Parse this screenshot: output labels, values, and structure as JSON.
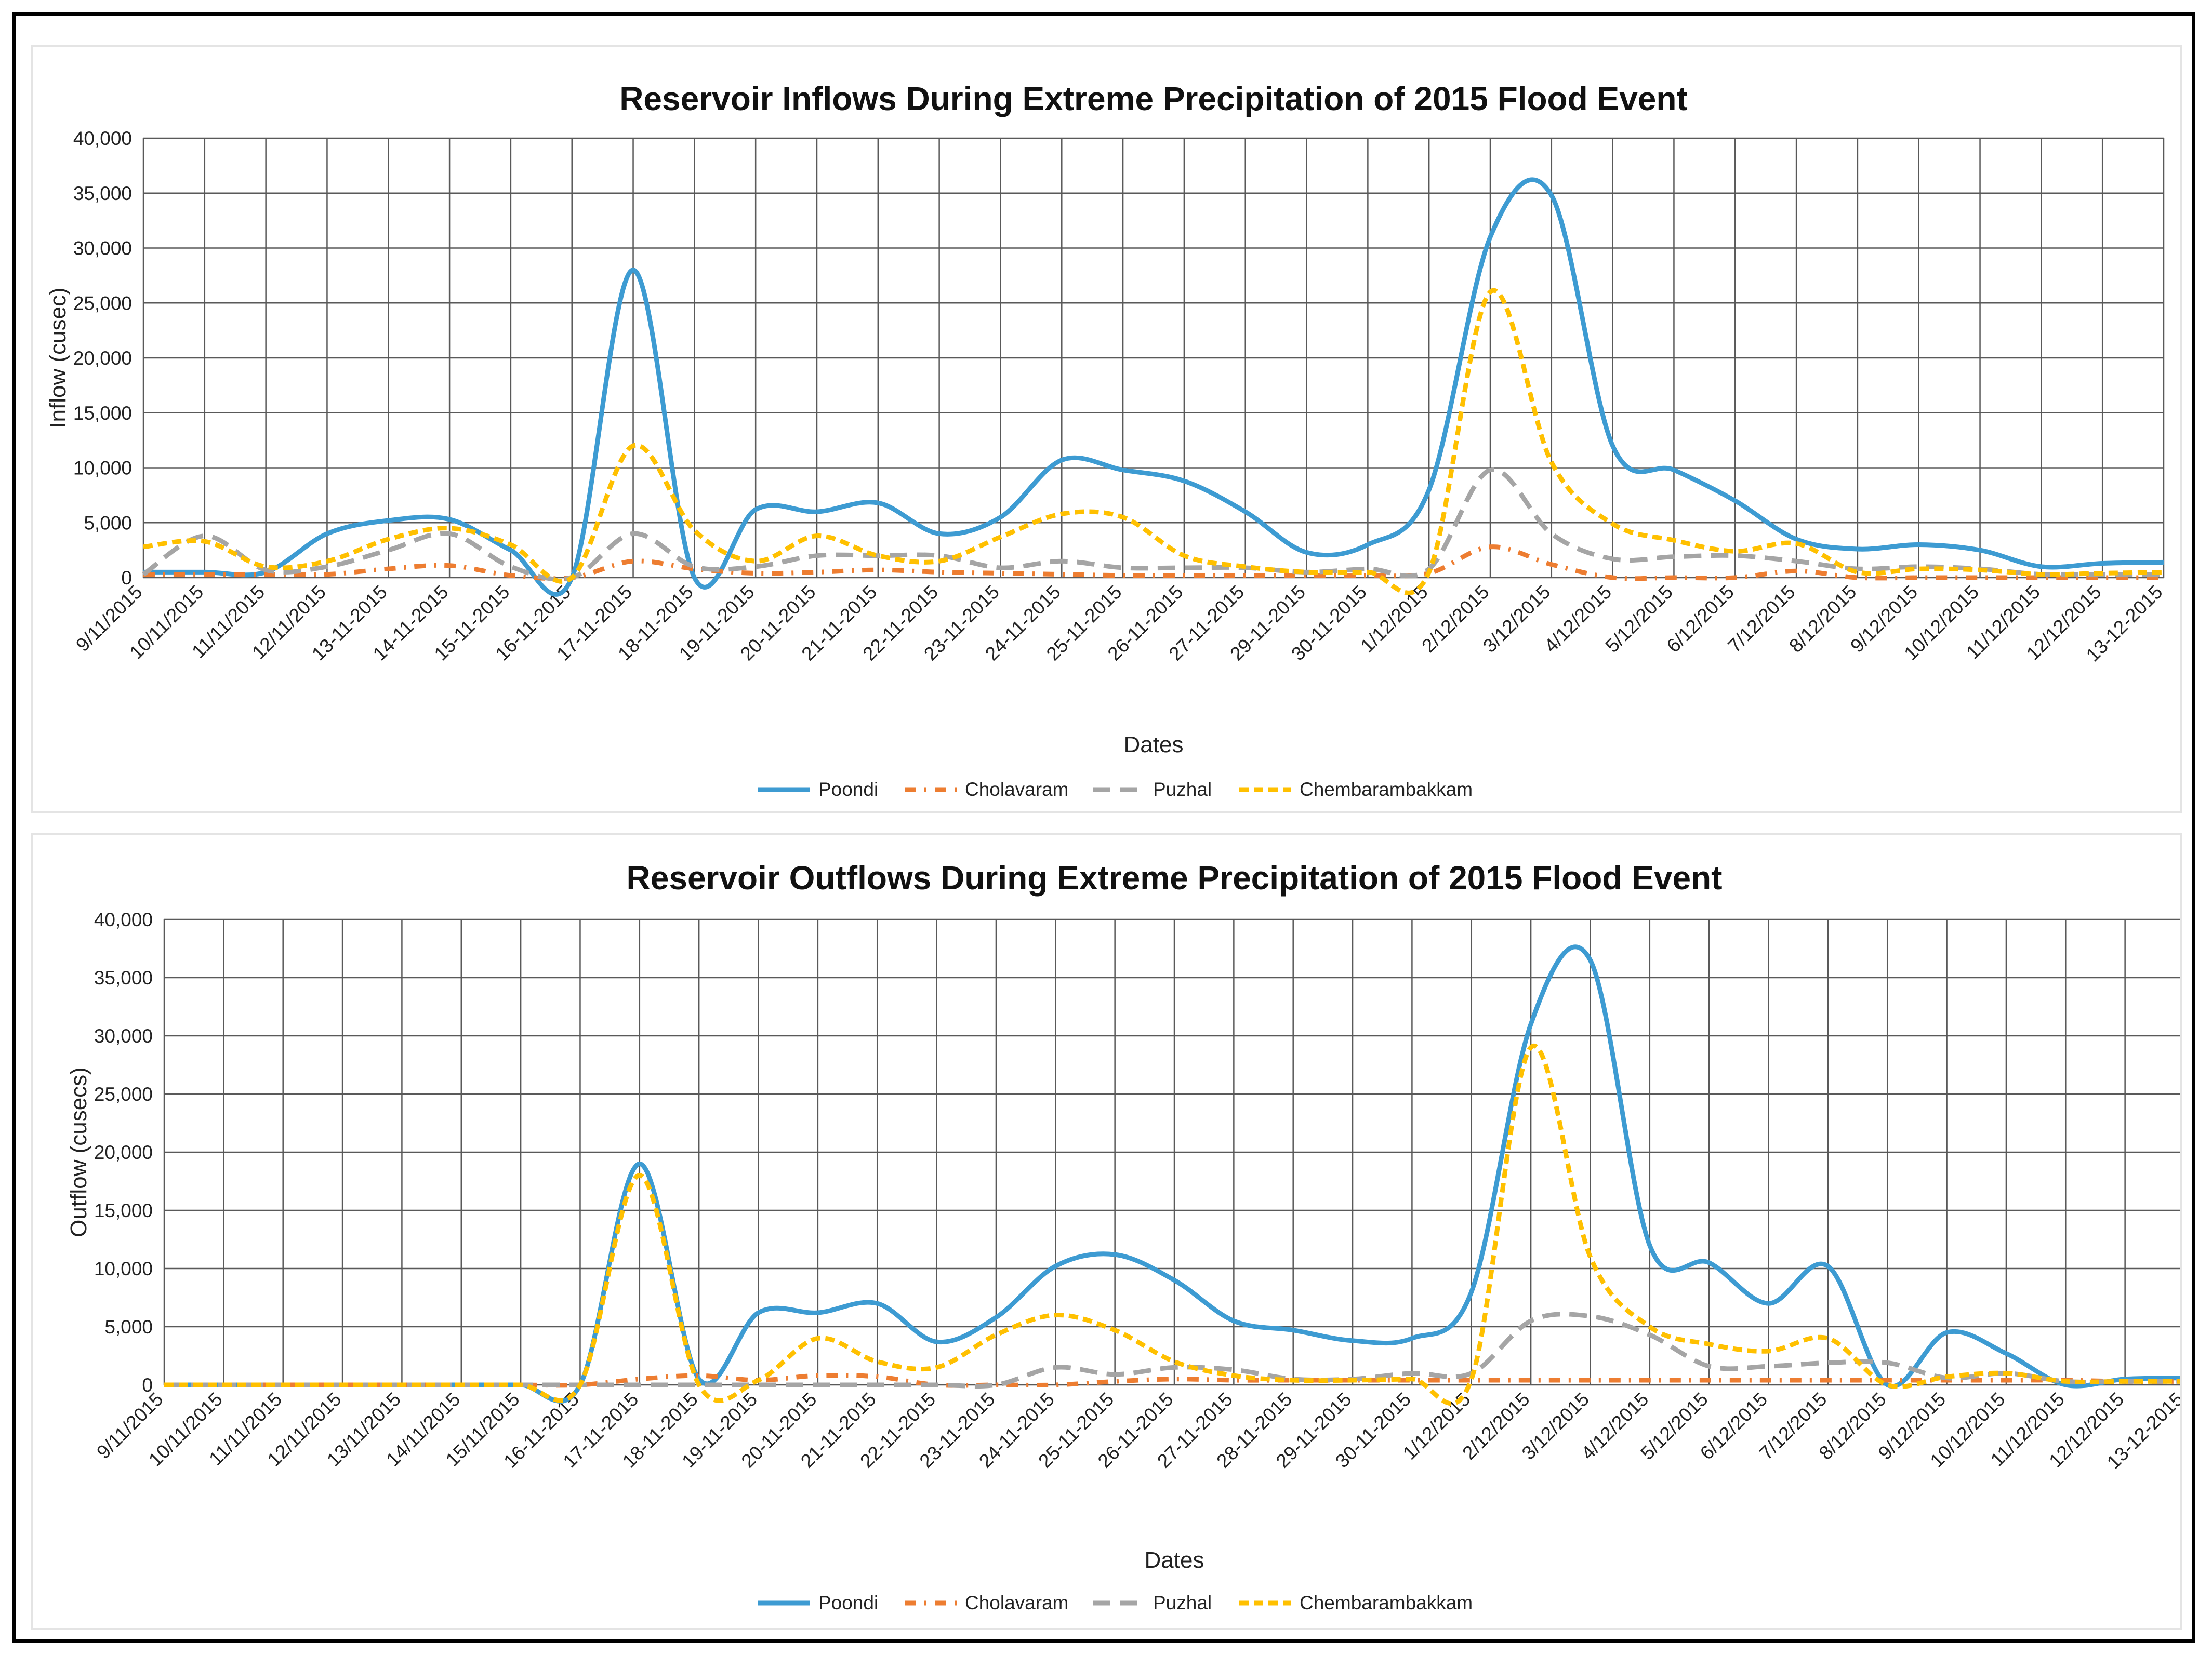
{
  "colors": {
    "Poondi": "#3d9bd2",
    "Cholavaram": "#ed7d31",
    "Puzhal": "#a5a5a5",
    "Chembarambakkam": "#ffc000",
    "grid": "#595959"
  },
  "chart_data": [
    {
      "type": "line",
      "title": "Reservoir Inflows During Extreme Precipitation of 2015 Flood Event",
      "xlabel": "Dates",
      "ylabel": "Inflow (cusec)",
      "ylim": [
        0,
        40000
      ],
      "yticks": [
        "0",
        "5,000",
        "10,000",
        "15,000",
        "20,000",
        "25,000",
        "30,000",
        "35,000",
        "40,000"
      ],
      "categories": [
        "9/11/2015",
        "10/11/2015",
        "11/11/2015",
        "12/11/2015",
        "13-11-2015",
        "14-11-2015",
        "15-11-2015",
        "16-11-2015",
        "17-11-2015",
        "18-11-2015",
        "19-11-2015",
        "20-11-2015",
        "21-11-2015",
        "22-11-2015",
        "23-11-2015",
        "24-11-2015",
        "25-11-2015",
        "26-11-2015",
        "27-11-2015",
        "29-11-2015",
        "30-11-2015",
        "1/12/2015",
        "2/12/2015",
        "3/12/2015",
        "4/12/2015",
        "5/12/2015",
        "6/12/2015",
        "7/12/2015",
        "8/12/2015",
        "9/12/2015",
        "10/12/2015",
        "11/12/2015",
        "12/12/2015",
        "13-12-2015"
      ],
      "legend": "bottom",
      "grid": true,
      "series": [
        {
          "name": "Poondi",
          "values": [
            500,
            500,
            500,
            4000,
            5200,
            5300,
            2500,
            0,
            28000,
            0,
            6200,
            6000,
            6800,
            4000,
            5500,
            10700,
            9800,
            8800,
            6000,
            2300,
            3000,
            8000,
            31000,
            34800,
            12000,
            9800,
            7000,
            3500,
            2600,
            3000,
            2500,
            1000,
            1300,
            1400
          ]
        },
        {
          "name": "Cholavaram",
          "values": [
            300,
            300,
            300,
            300,
            800,
            1100,
            200,
            0,
            1500,
            800,
            400,
            500,
            700,
            500,
            400,
            300,
            200,
            200,
            200,
            200,
            200,
            400,
            2800,
            1200,
            0,
            0,
            0,
            600,
            0,
            0,
            0,
            0,
            0,
            0
          ]
        },
        {
          "name": "Puzhal",
          "values": [
            300,
            3800,
            700,
            1000,
            2500,
            4000,
            1000,
            0,
            4000,
            1000,
            1000,
            2000,
            2000,
            2000,
            900,
            1500,
            900,
            900,
            900,
            500,
            800,
            800,
            9800,
            4000,
            1700,
            1900,
            2000,
            1500,
            800,
            1000,
            800,
            300,
            300,
            300
          ]
        },
        {
          "name": "Chembarambakkam",
          "values": [
            2800,
            3300,
            1000,
            1500,
            3500,
            4500,
            3000,
            0,
            12000,
            4300,
            1500,
            3800,
            2000,
            1500,
            3700,
            5800,
            5500,
            2000,
            1000,
            500,
            500,
            500,
            26000,
            10500,
            4900,
            3400,
            2400,
            3100,
            500,
            800,
            700,
            300,
            400,
            500
          ]
        }
      ]
    },
    {
      "type": "line",
      "title": "Reservoir Outflows During Extreme Precipitation of 2015 Flood Event",
      "xlabel": "Dates",
      "ylabel": "Outflow (cusecs)",
      "ylim": [
        0,
        40000
      ],
      "yticks": [
        "0",
        "5,000",
        "10,000",
        "15,000",
        "20,000",
        "25,000",
        "30,000",
        "35,000",
        "40,000"
      ],
      "categories": [
        "9/11/2015",
        "10/11/2015",
        "11/11/2015",
        "12/11/2015",
        "13/11/2015",
        "14/11/2015",
        "15/11/2015",
        "16-11-2015",
        "17-11-2015",
        "18-11-2015",
        "19-11-2015",
        "20-11-2015",
        "21-11-2015",
        "22-11-2015",
        "23-11-2015",
        "24-11-2015",
        "25-11-2015",
        "26-11-2015",
        "27-11-2015",
        "28-11-2015",
        "29-11-2015",
        "30-11-2015",
        "1/12/2015",
        "2/12/2015",
        "3/12/2015",
        "4/12/2015",
        "5/12/2015",
        "6/12/2015",
        "7/12/2015",
        "8/12/2015",
        "9/12/2015",
        "10/12/2015",
        "11/12/2015",
        "12/12/2015",
        "13-12-2015"
      ],
      "legend": "bottom",
      "grid": true,
      "series": [
        {
          "name": "Poondi",
          "values": [
            0,
            0,
            0,
            0,
            0,
            0,
            0,
            0,
            19000,
            500,
            6200,
            6200,
            7000,
            3700,
            5800,
            10200,
            11200,
            9000,
            5500,
            4700,
            3800,
            4000,
            8000,
            31000,
            36500,
            12000,
            10500,
            7000,
            10200,
            0,
            4500,
            2700,
            0,
            500,
            600
          ]
        },
        {
          "name": "Cholavaram",
          "values": [
            0,
            0,
            0,
            0,
            0,
            0,
            0,
            0,
            500,
            800,
            400,
            800,
            700,
            0,
            0,
            0,
            300,
            500,
            400,
            400,
            400,
            400,
            400,
            400,
            400,
            400,
            400,
            400,
            400,
            400,
            400,
            400,
            400,
            300,
            300
          ]
        },
        {
          "name": "Puzhal",
          "values": [
            0,
            0,
            0,
            0,
            0,
            0,
            0,
            0,
            0,
            0,
            0,
            0,
            0,
            0,
            0,
            1500,
            900,
            1500,
            1300,
            500,
            500,
            1000,
            1000,
            5500,
            5900,
            4300,
            1600,
            1600,
            1900,
            1900,
            600,
            1000,
            300,
            300,
            300
          ]
        },
        {
          "name": "Chembarambakkam",
          "values": [
            0,
            0,
            0,
            0,
            0,
            0,
            0,
            0,
            18000,
            0,
            400,
            4000,
            2000,
            1500,
            4300,
            6000,
            4700,
            2000,
            800,
            400,
            400,
            500,
            500,
            29000,
            11000,
            5000,
            3500,
            2900,
            4000,
            0,
            700,
            1000,
            300,
            300,
            300
          ]
        }
      ]
    }
  ]
}
